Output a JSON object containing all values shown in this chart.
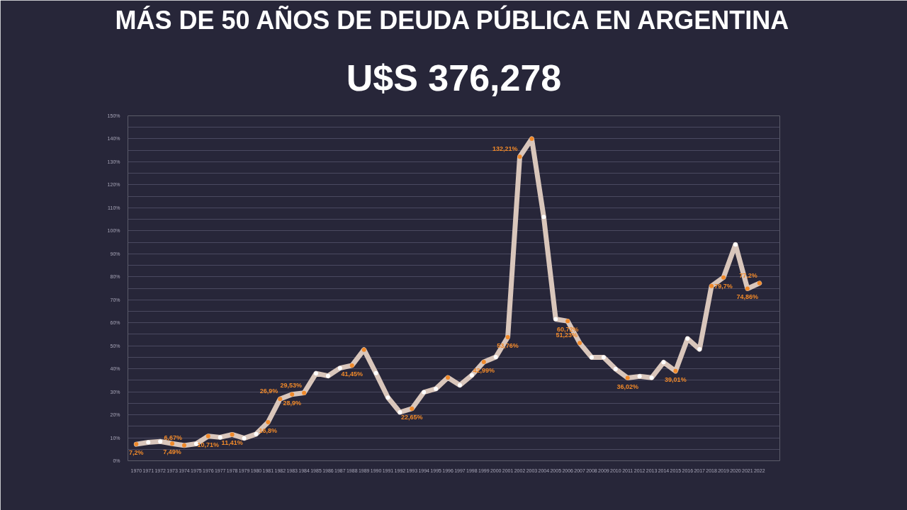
{
  "chart_data": {
    "type": "line",
    "title": "MÁS DE 50 AÑOS DE DEUDA PÚBLICA EN ARGENTINA",
    "subtitle": "U$S 376,278",
    "categories": [
      "1970",
      "1971",
      "1972",
      "1973",
      "1974",
      "1975",
      "1976",
      "1977",
      "1978",
      "1979",
      "1980",
      "1981",
      "1982",
      "1983",
      "1984",
      "1985",
      "1986",
      "1987",
      "1988",
      "1989",
      "1990",
      "1991",
      "1992",
      "1993",
      "1994",
      "1995",
      "1996",
      "1997",
      "1998",
      "1999",
      "2000",
      "2001",
      "2002",
      "2003",
      "2004",
      "2005",
      "2006",
      "2007",
      "2008",
      "2009",
      "2010",
      "2011",
      "2012",
      "2013",
      "2014",
      "2015",
      "2016",
      "2017",
      "2018",
      "2019",
      "2020",
      "2021",
      "2022"
    ],
    "series": [
      {
        "color": "#d9c6bb",
        "values": [
          7.2,
          8.0,
          8.4,
          7.49,
          6.67,
          7.4,
          10.71,
          10.2,
          11.41,
          9.8,
          11.6,
          16.8,
          26.9,
          28.9,
          29.53,
          38.0,
          36.9,
          40.3,
          41.45,
          48.3,
          38.1,
          27.5,
          21.1,
          22.65,
          29.8,
          31.3,
          36.2,
          32.9,
          37.2,
          42.99,
          45.1,
          53.76,
          132.21,
          140,
          106,
          61.6,
          60.72,
          51.23,
          45.0,
          45.0,
          39.9,
          36.02,
          36.7,
          36.1,
          42.8,
          39.01,
          53.1,
          48.5,
          76,
          79.7,
          94,
          74.86,
          77.2
        ],
        "colors": [
          "#f0892a",
          "#ffffff",
          "#ffffff",
          "#f0892a",
          "#f0892a",
          "#ffffff",
          "#f0892a",
          "#ffffff",
          "#f0892a",
          "#ffffff",
          "#ffffff",
          "#f0892a",
          "#f0892a",
          "#f0892a",
          "#f0892a",
          "#ffffff",
          "#ffffff",
          "#ffffff",
          "#f0892a",
          "#f0892a",
          "#ffffff",
          "#ffffff",
          "#ffffff",
          "#f0892a",
          "#ffffff",
          "#ffffff",
          "#f0892a",
          "#ffffff",
          "#ffffff",
          "#f0892a",
          "#ffffff",
          "#f0892a",
          "#f0892a",
          "#f0892a",
          "#ffffff",
          "#ffffff",
          "#f0892a",
          "#f0892a",
          "#ffffff",
          "#ffffff",
          "#ffffff",
          "#f0892a",
          "#ffffff",
          "#ffffff",
          "#ffffff",
          "#f0892a",
          "#ffffff",
          "#ffffff",
          "#f0892a",
          "#f0892a",
          "#ffffff",
          "#f0892a",
          "#f0892a"
        ],
        "value_labels": [
          "7,2%",
          null,
          null,
          "7,49%",
          "6,67%",
          null,
          "10,71%",
          null,
          "11,41%",
          null,
          null,
          "16,8%",
          "26,9%",
          "28,9%",
          "29,53%",
          null,
          null,
          null,
          "41,45%",
          null,
          null,
          null,
          null,
          "22,65%",
          null,
          null,
          null,
          null,
          null,
          "42,99%",
          null,
          "53,76%",
          "132,21%",
          null,
          null,
          null,
          "60,72%",
          "51,23%",
          null,
          null,
          null,
          "36,02%",
          null,
          null,
          null,
          "39,01%",
          null,
          null,
          null,
          "79,7%",
          null,
          "74,86%",
          "77,2%"
        ]
      }
    ],
    "marker": "circle",
    "grid": "y",
    "ylim": [
      0,
      150
    ],
    "yticks": [
      {
        "value": 0,
        "label": "0%"
      },
      {
        "value": 5,
        "label": null
      },
      {
        "value": 10,
        "label": "10%"
      },
      {
        "value": 15,
        "label": null
      },
      {
        "value": 20,
        "label": "20%"
      },
      {
        "value": 25,
        "label": null
      },
      {
        "value": 30,
        "label": "30%"
      },
      {
        "value": 35,
        "label": null
      },
      {
        "value": 40,
        "label": "40%"
      },
      {
        "value": 45,
        "label": null
      },
      {
        "value": 50,
        "label": "50%"
      },
      {
        "value": 55,
        "label": null
      },
      {
        "value": 60,
        "label": "60%"
      },
      {
        "value": 65,
        "label": null
      },
      {
        "value": 70,
        "label": "70%"
      },
      {
        "value": 75,
        "label": null
      },
      {
        "value": 80,
        "label": "80%"
      },
      {
        "value": 85,
        "label": null
      },
      {
        "value": 90,
        "label": "90%"
      },
      {
        "value": 95,
        "label": null
      },
      {
        "value": 100,
        "label": "100%"
      },
      {
        "value": 105,
        "label": null
      },
      {
        "value": 110,
        "label": "110%"
      },
      {
        "value": 115,
        "label": null
      },
      {
        "value": 120,
        "label": "120%"
      },
      {
        "value": 125,
        "label": null
      },
      {
        "value": 130,
        "label": "130%"
      },
      {
        "value": 135,
        "label": null
      },
      {
        "value": 140,
        "label": "140%"
      },
      {
        "value": 145,
        "label": null
      },
      {
        "value": 150,
        "label": "150%"
      }
    ]
  }
}
